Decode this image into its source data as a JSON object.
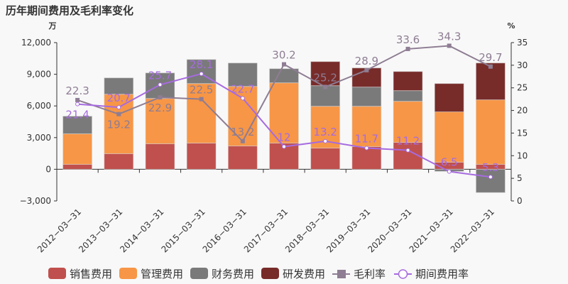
{
  "chart_data": {
    "type": "bar",
    "title": "历年期间费用及毛利率变化",
    "y_left_unit": "万",
    "y_right_unit": "%",
    "y_left_range": [
      -3000,
      12000
    ],
    "y_left_ticks": [
      "-3,000",
      "0",
      "3,000",
      "6,000",
      "9,000",
      "12,000"
    ],
    "y_right_range": [
      0,
      35
    ],
    "y_right_ticks": [
      "0",
      "5",
      "10",
      "15",
      "20",
      "25",
      "30",
      "35"
    ],
    "categories": [
      "2012-03-31",
      "2013-03-31",
      "2014-03-31",
      "2015-03-31",
      "2016-03-31",
      "2017-03-31",
      "2018-03-31",
      "2019-03-31",
      "2020-03-31",
      "2021-03-31",
      "2022-03-31"
    ],
    "stacked": true,
    "bar_series": [
      {
        "name": "销售费用",
        "color": "#c0504d",
        "values": [
          470,
          1480,
          2420,
          2480,
          2210,
          2480,
          2010,
          2150,
          2550,
          670,
          470
        ]
      },
      {
        "name": "管理费用",
        "color": "#f79646",
        "values": [
          2890,
          5630,
          4290,
          5640,
          5640,
          5710,
          3960,
          3820,
          3890,
          4770,
          6110
        ]
      },
      {
        "name": "财务费用",
        "color": "#7a7a7a",
        "values": [
          1670,
          1550,
          2420,
          2280,
          2220,
          1340,
          1950,
          1820,
          1010,
          -200,
          -2210
        ]
      },
      {
        "name": "研发费用",
        "color": "#772c2a",
        "values": [
          0,
          0,
          0,
          0,
          0,
          0,
          2280,
          1810,
          1810,
          2680,
          3490
        ]
      }
    ],
    "line_series": [
      {
        "name": "毛利率",
        "color": "#8e7d93",
        "axis": "right",
        "marker": "square",
        "values": [
          22.3,
          19.2,
          22.9,
          22.5,
          13.2,
          30.2,
          25.2,
          28.9,
          33.6,
          34.3,
          29.7
        ]
      },
      {
        "name": "期间费用率",
        "color": "#a66be0",
        "axis": "right",
        "marker": "circle",
        "values": [
          21.4,
          20.7,
          25.7,
          28.1,
          22.7,
          12,
          13.2,
          11.7,
          11.2,
          6.5,
          5.3
        ]
      }
    ],
    "grid": false,
    "legend_position": "bottom"
  }
}
